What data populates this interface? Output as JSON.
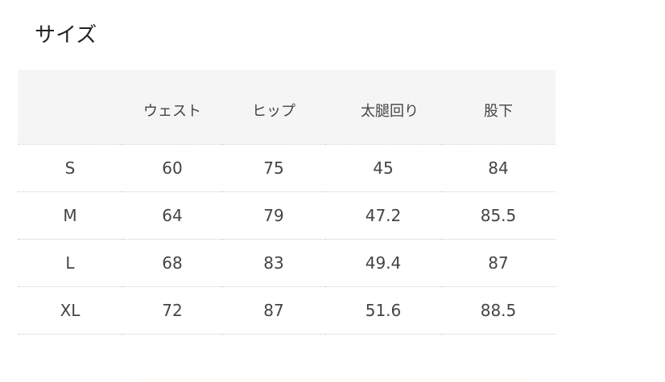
{
  "title": "サイズ",
  "table": {
    "headers": [
      "",
      "ウェスト",
      "ヒップ",
      "太腿回り",
      "股下"
    ],
    "rows": [
      [
        "S",
        "60",
        "75",
        "45",
        "84"
      ],
      [
        "M",
        "64",
        "79",
        "47.2",
        "85.5"
      ],
      [
        "L",
        "68",
        "83",
        "49.4",
        "87"
      ],
      [
        "XL",
        "72",
        "87",
        "51.6",
        "88.5"
      ]
    ]
  }
}
